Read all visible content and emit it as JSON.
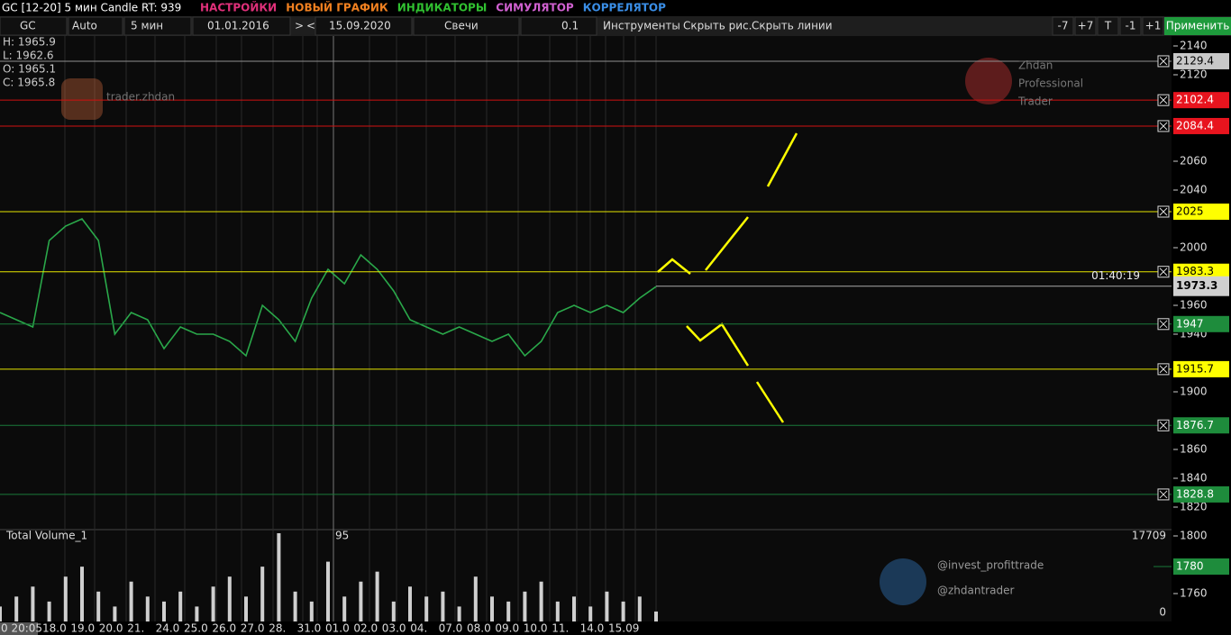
{
  "header": {
    "title": "GC [12-20] 5 мин Candle RT: 939",
    "menu": [
      {
        "text": "НАСТРОЙКИ",
        "color": "#e0307a"
      },
      {
        "text": "НОВЫЙ ГРАФИК",
        "color": "#f08020"
      },
      {
        "text": "ИНДИКАТОРЫ",
        "color": "#30c030"
      },
      {
        "text": "СИМУЛЯТОР",
        "color": "#d060d0"
      },
      {
        "text": "КОРРЕЛЯТОР",
        "color": "#3a8ee6"
      }
    ]
  },
  "toolbar": {
    "symbol": "GC",
    "scale": "Auto",
    "period": "5 мин",
    "date_from": "01.01.2016",
    "next": ">",
    "prev": "<",
    "date_to": "15.09.2020",
    "style": "Свечи",
    "step": "0.1",
    "tools": "Инструменты",
    "hide_drawings": "Скрыть рис.",
    "hide_lines": "Скрыть линии",
    "buttons": [
      "-7",
      "+7",
      "T",
      "-1",
      "+1"
    ],
    "apply": "Применить"
  },
  "ohlc": [
    "H: 1965.9",
    "L: 1962.6",
    "O: 1965.1",
    "C: 1965.8"
  ],
  "watermarks": {
    "instagram": "trader.zhdan",
    "youtube": [
      "Zhdan",
      "Professional",
      "Trader"
    ],
    "telegram": [
      "@invest_profittrade",
      "@zhdantrader"
    ]
  },
  "chart": {
    "ylim": [
      1820,
      2140
    ],
    "yticks": [
      2140,
      2120,
      2060,
      2040,
      2000,
      1960,
      1940,
      1900,
      1860,
      1840,
      1820
    ],
    "levels": [
      {
        "value": 2129.4,
        "color": "#c8c8c8",
        "line": "#909090"
      },
      {
        "value": 2102.4,
        "color": "#e8141e",
        "line": "#d01010"
      },
      {
        "value": 2084.4,
        "color": "#e8141e",
        "line": "#d01010"
      },
      {
        "value": 2025,
        "color": "#ffff00",
        "line": "#e6e600"
      },
      {
        "value": 1983.3,
        "color": "#ffff00",
        "line": "#e6e600"
      },
      {
        "value": 1947,
        "color": "#1e8c3c",
        "line": "#1a7a3a"
      },
      {
        "value": 1915.7,
        "color": "#ffff00",
        "line": "#e6e600"
      },
      {
        "value": 1876.7,
        "color": "#1e8c3c",
        "line": "#1a7a3a"
      },
      {
        "value": 1828.8,
        "color": "#1e8c3c",
        "line": "#1a7a3a"
      }
    ],
    "last_price": 1973.3,
    "timer": "01:40:19",
    "price": [
      1955,
      1950,
      1945,
      2005,
      2015,
      2020,
      2005,
      1940,
      1955,
      1950,
      1930,
      1945,
      1940,
      1940,
      1935,
      1925,
      1960,
      1950,
      1935,
      1965,
      1985,
      1975,
      1995,
      1985,
      1970,
      1950,
      1945,
      1940,
      1945,
      1940,
      1935,
      1940,
      1925,
      1935,
      1955,
      1960,
      1955,
      1960,
      1955,
      1965,
      1973
    ],
    "color": "#2aa84a"
  },
  "volume": {
    "title": "Total Volume_1",
    "cursor": "95",
    "max_label": 17709,
    "min_label": 0,
    "ylim": [
      0,
      17709
    ],
    "values": [
      3000,
      5000,
      7000,
      4000,
      9000,
      11000,
      6000,
      3000,
      8000,
      5000,
      4000,
      6000,
      3000,
      7000,
      9000,
      5000,
      11000,
      17709,
      6000,
      4000,
      12000,
      5000,
      8000,
      10000,
      4000,
      7000,
      5000,
      6000,
      3000,
      9000,
      5000,
      4000,
      6000,
      8000,
      4000,
      5000,
      3000,
      6000,
      4000,
      5000,
      2000
    ],
    "axis_ticks": [
      1800,
      1760
    ],
    "level": 1780
  },
  "dates": [
    "0 20:05",
    "18.0",
    "19.0",
    "20.0",
    "21.",
    "24.0",
    "25.0",
    "26.0",
    "27.0",
    "28.",
    "31.0",
    "01.0",
    "02.0",
    "03.0",
    "04.",
    "07.0",
    "08.0",
    "09.0",
    "10.0",
    "11.",
    "14.0",
    "15.09"
  ]
}
